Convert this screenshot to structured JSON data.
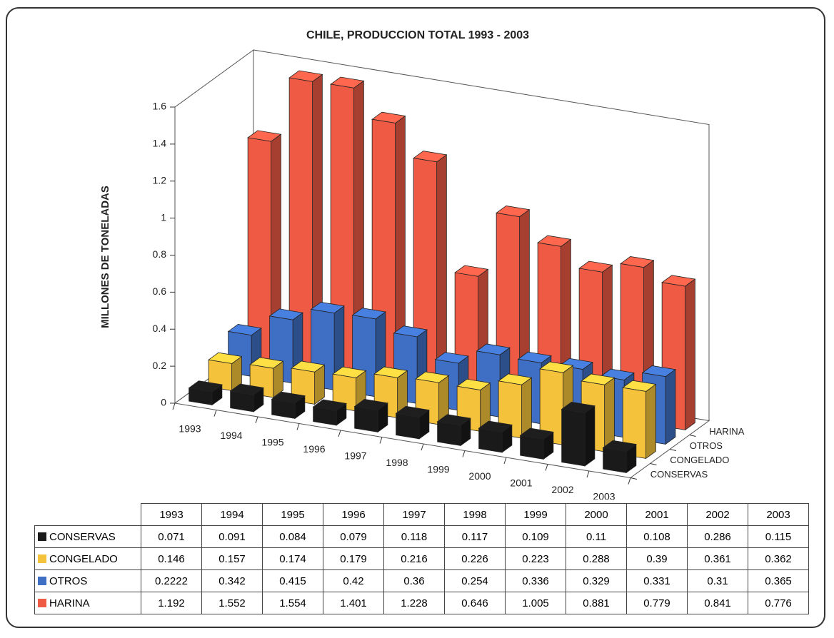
{
  "chart_data": {
    "type": "bar",
    "title": "CHILE, PRODUCCION TOTAL 1993 - 2003",
    "ylabel": "MILLONES DE TONELADAS",
    "categories": [
      "1993",
      "1994",
      "1995",
      "1996",
      "1997",
      "1998",
      "1999",
      "2000",
      "2001",
      "2002",
      "2003"
    ],
    "series": [
      {
        "name": "CONSERVAS",
        "color": "#1a1a1a",
        "values": [
          0.071,
          0.091,
          0.084,
          0.079,
          0.118,
          0.117,
          0.109,
          0.11,
          0.108,
          0.286,
          0.115
        ]
      },
      {
        "name": "CONGELADO",
        "color": "#f5c33b",
        "values": [
          0.146,
          0.157,
          0.174,
          0.179,
          0.216,
          0.226,
          0.223,
          0.288,
          0.39,
          0.361,
          0.362
        ]
      },
      {
        "name": "OTROS",
        "color": "#3f6fc4",
        "values": [
          0.2222,
          0.342,
          0.415,
          0.42,
          0.36,
          0.254,
          0.336,
          0.329,
          0.331,
          0.31,
          0.365
        ]
      },
      {
        "name": "HARINA",
        "color": "#ee5a44",
        "values": [
          1.192,
          1.552,
          1.554,
          1.401,
          1.228,
          0.646,
          1.005,
          0.881,
          0.779,
          0.841,
          0.776
        ]
      }
    ],
    "ylim": [
      0,
      1.6
    ],
    "yticks": [
      0,
      0.2,
      0.4,
      0.6,
      0.8,
      1,
      1.2,
      1.4,
      1.6
    ]
  }
}
